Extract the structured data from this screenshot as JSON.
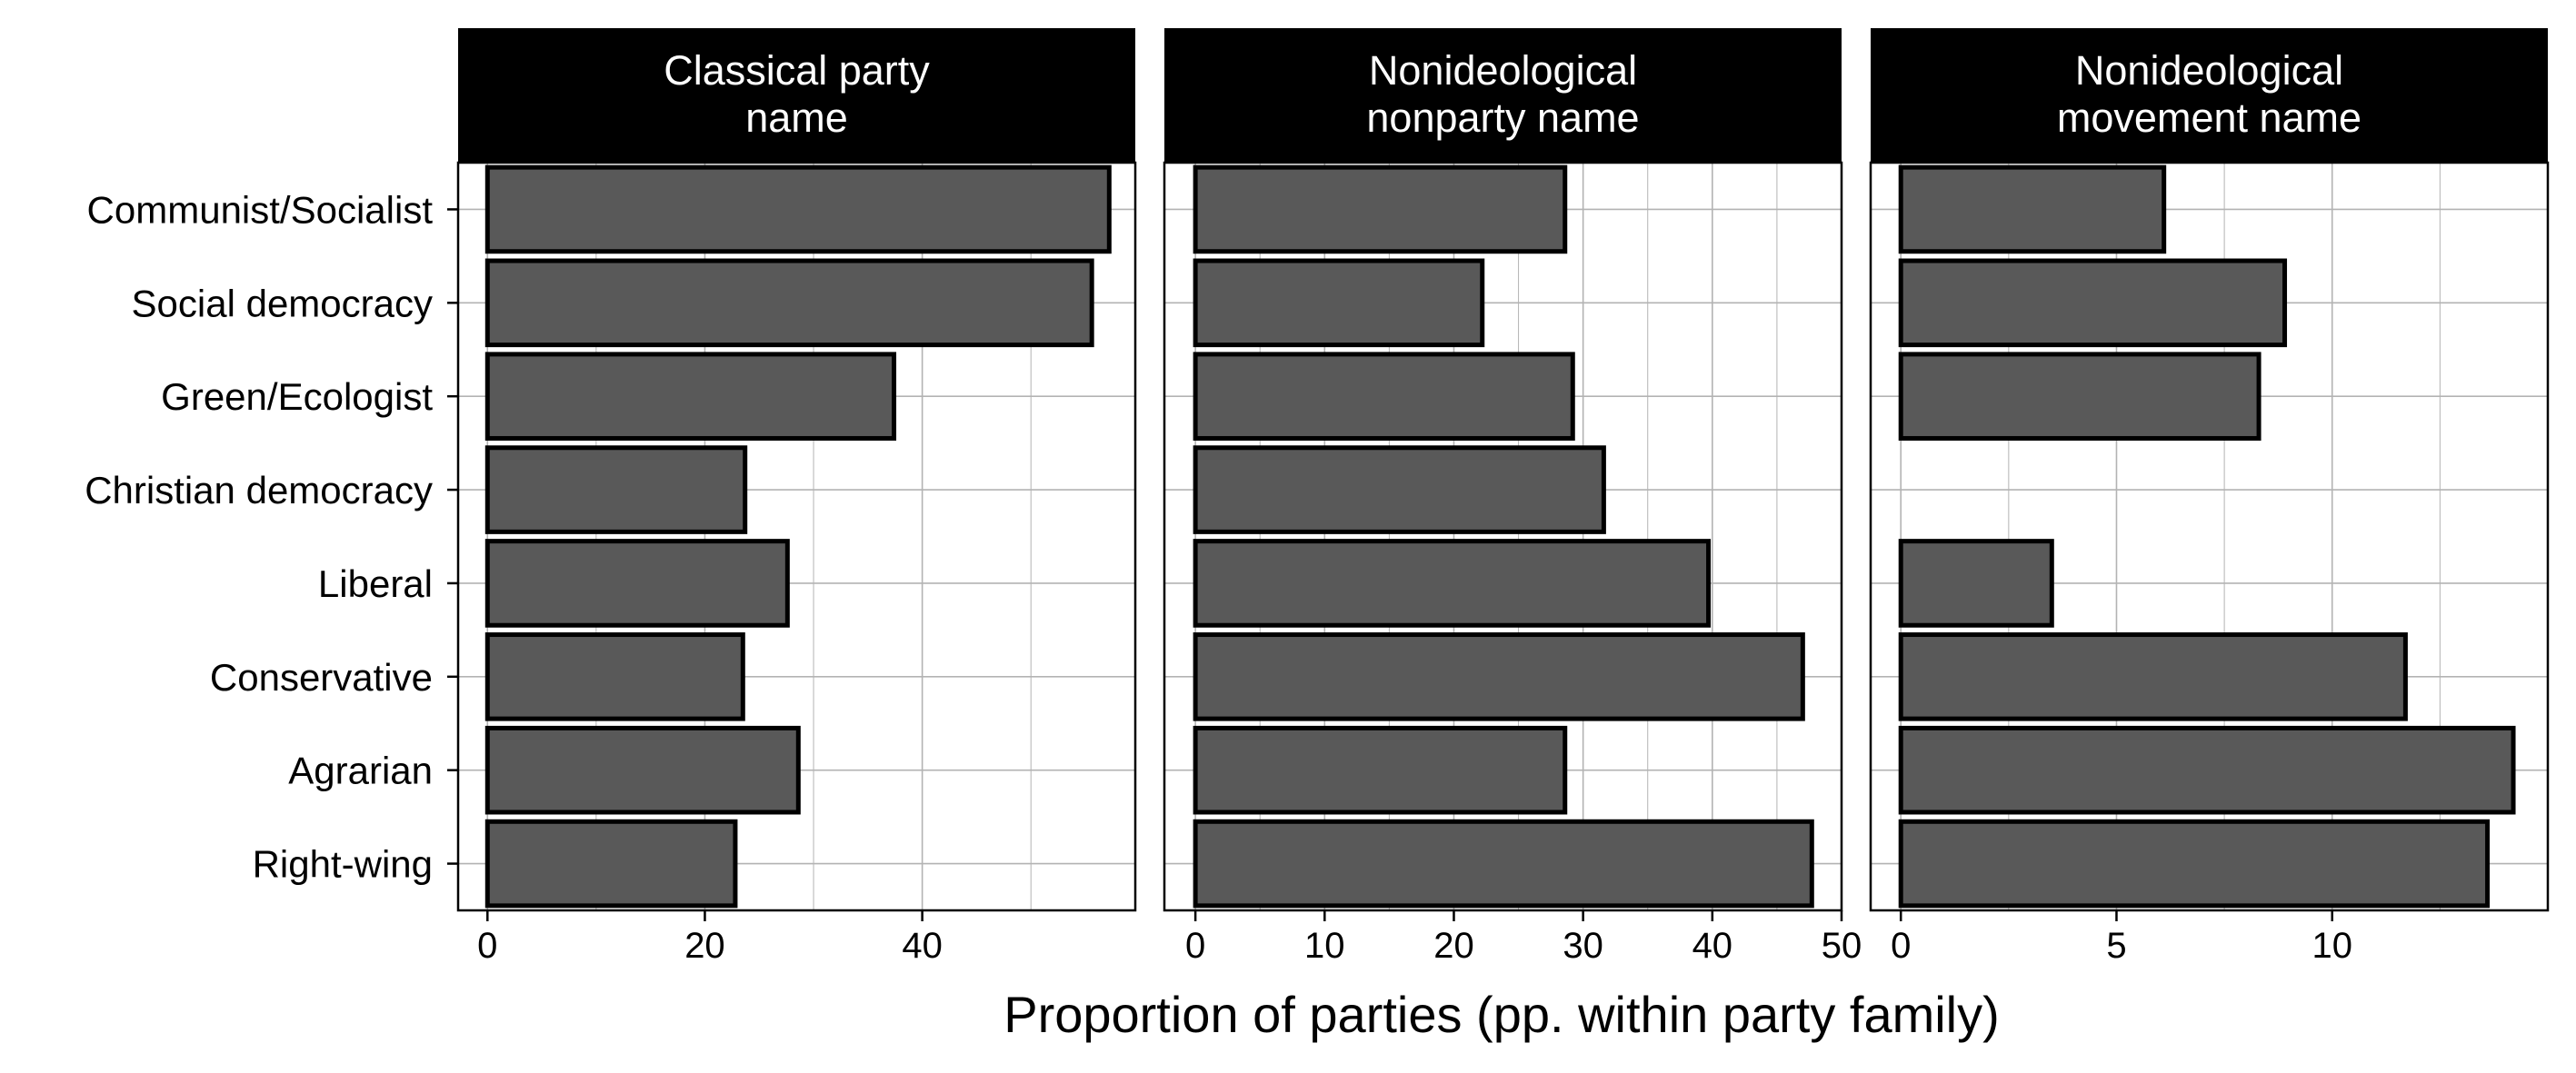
{
  "chart_data": {
    "type": "bar",
    "orientation": "horizontal",
    "xlabel": "Proportion of parties (pp. within party family)",
    "categories": [
      "Communist/Socialist",
      "Social democracy",
      "Green/Ecologist",
      "Christian democracy",
      "Liberal",
      "Conservative",
      "Agrarian",
      "Right-wing"
    ],
    "grid": true,
    "colors": {
      "bar_fill": "#595959",
      "bar_stroke": "#000000",
      "strip_fill": "#000000",
      "grid": "#b3b3b3"
    },
    "panels": [
      {
        "title_lines": [
          "Classical party",
          "name"
        ],
        "xlim": [
          -2.7,
          59.6
        ],
        "ticks": [
          0,
          20,
          40
        ],
        "tick_labels": [
          "0",
          "20",
          "40"
        ],
        "values": [
          57.2,
          55.6,
          37.4,
          23.7,
          27.6,
          23.5,
          28.6,
          22.8
        ]
      },
      {
        "title_lines": [
          "Nonideological",
          "nonparty name"
        ],
        "xlim": [
          -2.4,
          50.0
        ],
        "ticks": [
          0,
          10,
          20,
          30,
          40,
          50
        ],
        "tick_labels": [
          "0",
          "10",
          "20",
          "30",
          "40",
          "50"
        ],
        "values": [
          28.6,
          22.2,
          29.2,
          31.6,
          39.7,
          47.0,
          28.6,
          47.7
        ]
      },
      {
        "title_lines": [
          "Nonideological",
          "movement name"
        ],
        "xlim": [
          -0.7,
          15.0
        ],
        "ticks": [
          0,
          5,
          10
        ],
        "tick_labels": [
          "0",
          "5",
          "10"
        ],
        "values": [
          6.1,
          8.9,
          8.3,
          0.0,
          3.5,
          11.7,
          14.2,
          13.6
        ]
      }
    ]
  }
}
